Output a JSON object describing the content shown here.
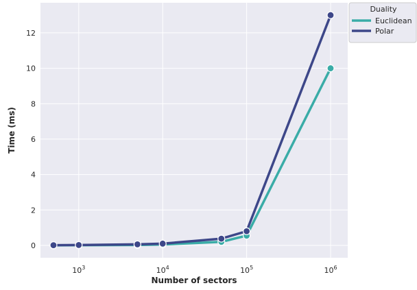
{
  "chart_data": {
    "type": "line",
    "xscale": "log",
    "xlabel": "Number of sectors",
    "ylabel": "Time (ms)",
    "xlim": [
      350,
      1600000
    ],
    "ylim": [
      -0.7,
      13.7
    ],
    "x_ticks": [
      {
        "value": 1000,
        "base": "10",
        "exp": "3"
      },
      {
        "value": 10000,
        "base": "10",
        "exp": "4"
      },
      {
        "value": 100000,
        "base": "10",
        "exp": "5"
      },
      {
        "value": 1000000,
        "base": "10",
        "exp": "6"
      }
    ],
    "y_ticks": [
      0,
      2,
      4,
      6,
      8,
      10,
      12
    ],
    "grid": true,
    "legend": {
      "title": "Duality",
      "placement": "outside top-right"
    },
    "x": [
      500,
      1000,
      5000,
      10000,
      50000,
      100000,
      1000000
    ],
    "series": [
      {
        "name": "Euclidean",
        "color": "#3aaca7",
        "values": [
          0.0,
          0.01,
          0.02,
          0.05,
          0.2,
          0.55,
          10.0
        ]
      },
      {
        "name": "Polar",
        "color": "#3d4789",
        "values": [
          0.01,
          0.02,
          0.06,
          0.1,
          0.38,
          0.8,
          13.0
        ]
      }
    ]
  }
}
